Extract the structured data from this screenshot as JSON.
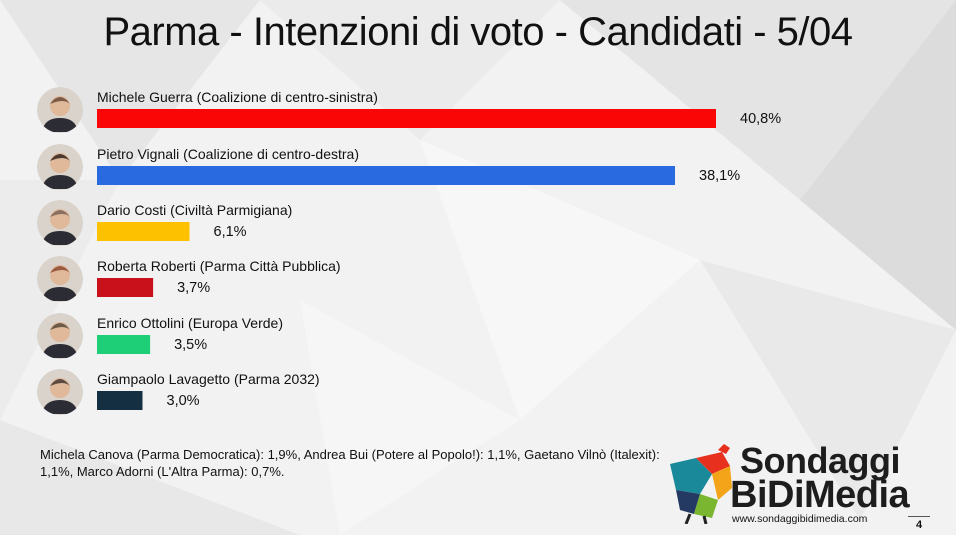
{
  "title": "Parma - Intenzioni di voto  - Candidati - 5/04",
  "chart_data": {
    "type": "bar",
    "orientation": "horizontal",
    "title": "Parma - Intenzioni di voto  - Candidati - 5/04",
    "categories": [
      "Michele Guerra (Coalizione di centro-sinistra)",
      "Pietro Vignali (Coalizione di centro-destra)",
      "Dario Costi (Civiltà Parmigiana)",
      "Roberta Roberti (Parma Città Pubblica)",
      "Enrico Ottolini (Europa Verde)",
      "Giampaolo Lavagetto (Parma 2032)"
    ],
    "values": [
      40.8,
      38.1,
      6.1,
      3.7,
      3.5,
      3.0
    ],
    "value_labels": [
      "40,8%",
      "38,1%",
      "6,1%",
      "3,7%",
      "3,5%",
      "3,0%"
    ],
    "colors": [
      "#fb0606",
      "#2a6ae0",
      "#fdc100",
      "#c8111b",
      "#1fcf78",
      "#142e42"
    ],
    "xlim": [
      0,
      45
    ],
    "grid": false,
    "legend": "none"
  },
  "candidate_photo_icons": [
    "person-photo-icon",
    "person-photo-icon",
    "person-photo-icon",
    "person-photo-icon",
    "person-photo-icon",
    "person-photo-icon"
  ],
  "footnote": "Michela Canova (Parma Democratica): 1,9%, Andrea Bui (Potere al Popolo!): 1,1%, Gaetano Vilnò (Italexit): 1,1%, Marco Adorni (L'Altra Parma): 0,7%.",
  "logo": {
    "line1": "Sondaggi",
    "line2": "BiDiMedia",
    "url": "www.sondaggibidimedia.com",
    "icon": "rooster-logo-icon"
  },
  "page_number": "4"
}
